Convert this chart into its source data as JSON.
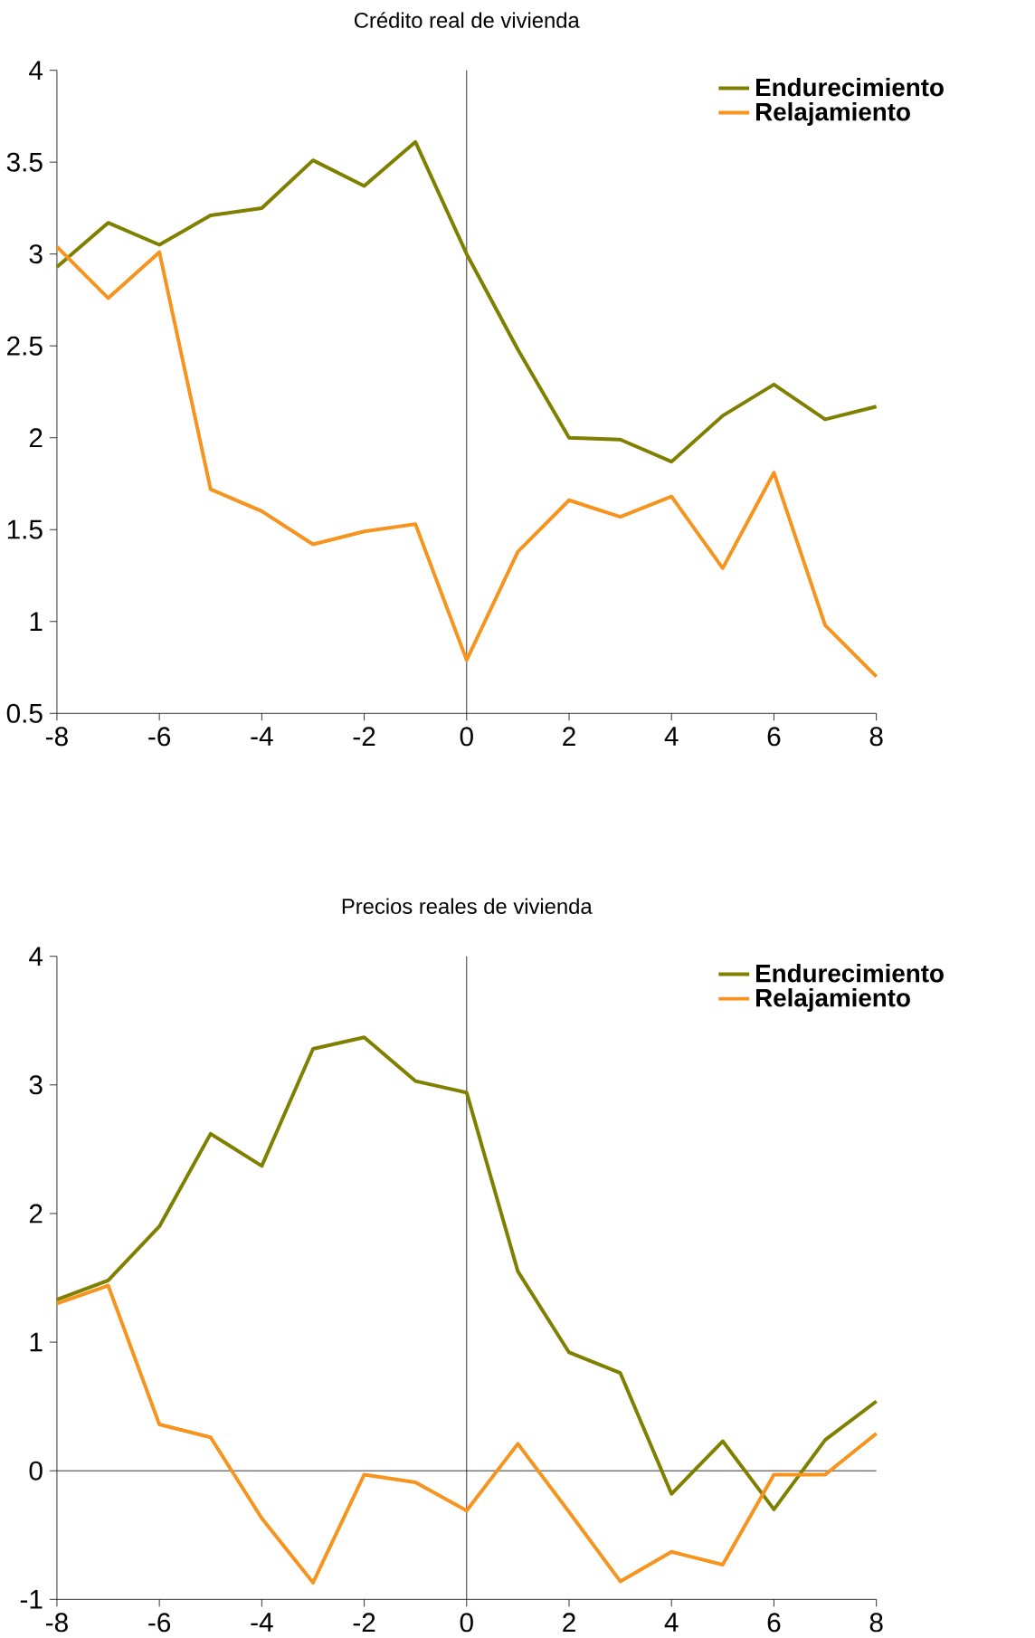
{
  "chart_data": [
    {
      "type": "line",
      "title": "Crédito real de vivienda",
      "x": [
        -8,
        -7,
        -6,
        -5,
        -4,
        -3,
        -2,
        -1,
        0,
        1,
        2,
        3,
        4,
        5,
        6,
        7,
        8
      ],
      "series": [
        {
          "name": "Endurecimiento",
          "color": "#7f7f00",
          "values": [
            2.93,
            3.17,
            3.05,
            3.21,
            3.25,
            3.51,
            3.37,
            3.61,
            3.0,
            2.48,
            2.0,
            1.99,
            1.87,
            2.12,
            2.29,
            2.1,
            2.17
          ]
        },
        {
          "name": "Relajamiento",
          "color": "#f7941d",
          "values": [
            3.04,
            2.76,
            3.01,
            1.72,
            1.6,
            1.42,
            1.49,
            1.53,
            0.79,
            1.38,
            1.66,
            1.57,
            1.68,
            1.29,
            1.81,
            0.98,
            0.7
          ]
        }
      ],
      "xlim": [
        -8,
        8
      ],
      "ylim": [
        0.5,
        4
      ],
      "xticks": [
        -8,
        -6,
        -4,
        -2,
        0,
        2,
        4,
        6,
        8
      ],
      "yticks": [
        0.5,
        1,
        1.5,
        2,
        2.5,
        3,
        3.5,
        4
      ],
      "ref_lines": [
        {
          "axis": "x",
          "value": 0
        }
      ],
      "legend": "top right",
      "grid": false,
      "marker": "none",
      "line_style": "solid"
    },
    {
      "type": "line",
      "title": "Precios reales de vivienda",
      "x": [
        -8,
        -7,
        -6,
        -5,
        -4,
        -3,
        -2,
        -1,
        0,
        1,
        2,
        3,
        4,
        5,
        6,
        7,
        8
      ],
      "series": [
        {
          "name": "Endurecimiento",
          "color": "#7f7f00",
          "values": [
            1.33,
            1.48,
            1.9,
            2.62,
            2.37,
            3.28,
            3.37,
            3.03,
            2.94,
            1.55,
            0.92,
            0.76,
            -0.18,
            0.23,
            -0.3,
            0.24,
            0.54
          ]
        },
        {
          "name": "Relajamiento",
          "color": "#f7941d",
          "values": [
            1.3,
            1.44,
            0.36,
            0.26,
            -0.37,
            -0.87,
            -0.03,
            -0.09,
            -0.31,
            0.21,
            -0.32,
            -0.86,
            -0.63,
            -0.73,
            -0.03,
            -0.03,
            0.29
          ]
        }
      ],
      "xlim": [
        -8,
        8
      ],
      "ylim": [
        -1,
        4
      ],
      "xticks": [
        -8,
        -6,
        -4,
        -2,
        0,
        2,
        4,
        6,
        8
      ],
      "yticks": [
        -1,
        0,
        1,
        2,
        3,
        4
      ],
      "ref_lines": [
        {
          "axis": "x",
          "value": 0
        },
        {
          "axis": "y",
          "value": 0
        }
      ],
      "legend": "top right",
      "grid": false,
      "marker": "none",
      "line_style": "solid"
    }
  ]
}
